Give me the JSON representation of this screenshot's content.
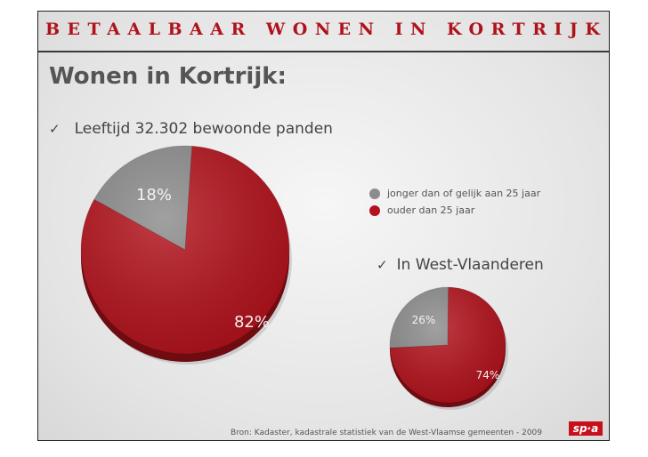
{
  "slide": {
    "title": "BETAALBAAR WONEN IN KORTRIJK",
    "heading": "Wonen in Kortrijk:",
    "bullet_main": "Leeftijd 32.302 bewoonde panden",
    "bullet_sub": "In West-Vlaanderen",
    "check_glyph": "✓",
    "source": "Bron: Kadaster, kadastrale statistiek van de West-Vlaamse gemeenten - 2009",
    "logo": "sp·a"
  },
  "colors": {
    "accent": "#b0121b",
    "young": "#8c8c8c",
    "old": "#b3121c"
  },
  "chart_data": [
    {
      "type": "pie",
      "title": "",
      "categories": [
        "jonger dan of gelijk aan 25 jaar",
        "ouder dan 25 jaar"
      ],
      "values": [
        18,
        82
      ],
      "labels": [
        "18%",
        "82%"
      ],
      "legend": "right"
    },
    {
      "type": "pie",
      "title": "In West-Vlaanderen",
      "categories": [
        "jonger dan of gelijk aan 25 jaar",
        "ouder dan 25 jaar"
      ],
      "values": [
        26,
        74
      ],
      "labels": [
        "26%",
        "74%"
      ]
    }
  ]
}
